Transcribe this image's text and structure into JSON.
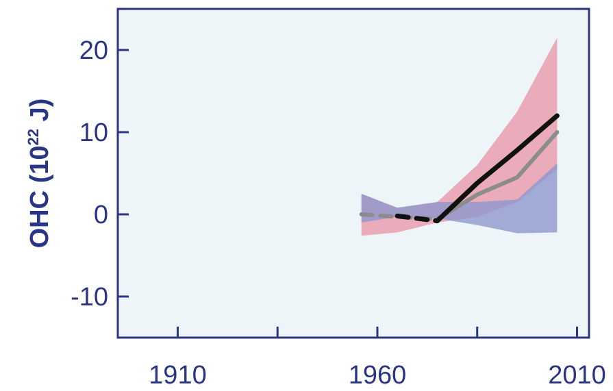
{
  "chart_data": {
    "type": "line",
    "ylabel": {
      "prefix": "OHC (10",
      "superscript": "22",
      "suffix": " J)"
    },
    "xlabel": "",
    "xlim": [
      1895,
      2013
    ],
    "ylim": [
      -15,
      25
    ],
    "x_ticks": [
      1910,
      1935,
      1960,
      1985,
      2010
    ],
    "x_tick_labels": [
      {
        "value": 1910,
        "label": "1910"
      },
      {
        "value": 1960,
        "label": "1960"
      },
      {
        "value": 2010,
        "label": "2010"
      }
    ],
    "y_ticks": [
      {
        "value": 20,
        "label": "20"
      },
      {
        "value": 10,
        "label": "10"
      },
      {
        "value": 0,
        "label": "0"
      },
      {
        "value": -10,
        "label": "-10"
      }
    ],
    "grid": false,
    "bands": [
      {
        "color": "#e9a3b4",
        "x": [
          1956,
          1965,
          1975,
          1985,
          1995,
          2005
        ],
        "upper": [
          2.5,
          0.8,
          1.5,
          6.0,
          12.5,
          21.5
        ],
        "lower": [
          -2.6,
          -2.2,
          -1.0,
          -0.3,
          1.5,
          5.5
        ]
      },
      {
        "color": "#8e97cd",
        "x": [
          1956,
          1965,
          1975,
          1985,
          1995,
          2005
        ],
        "upper": [
          2.5,
          0.8,
          1.5,
          1.5,
          1.8,
          6.2
        ],
        "lower": [
          -1.0,
          -0.3,
          -0.5,
          -1.3,
          -2.3,
          -2.2
        ]
      }
    ],
    "series": [
      {
        "color": "#8c8c8c",
        "segments": [
          {
            "style": "dashed",
            "x": [
              1956,
              1965,
              1975
            ],
            "y": [
              0.0,
              -0.3,
              -0.6
            ]
          },
          {
            "style": "solid",
            "x": [
              1975,
              1985,
              1995,
              2005
            ],
            "y": [
              -0.6,
              2.4,
              4.5,
              10.0
            ]
          }
        ]
      },
      {
        "color": "#111111",
        "segments": [
          {
            "style": "dashed",
            "x": [
              1965,
              1975
            ],
            "y": [
              -0.2,
              -0.8
            ]
          },
          {
            "style": "solid",
            "x": [
              1975,
              1985,
              1995,
              2005
            ],
            "y": [
              -0.8,
              3.8,
              7.8,
              12.0
            ]
          }
        ]
      }
    ]
  }
}
